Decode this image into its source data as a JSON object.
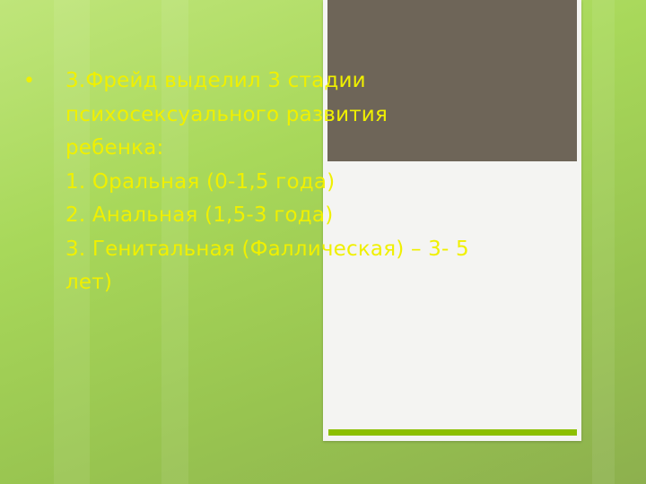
{
  "slide": {
    "bullet": "•",
    "lines": [
      "3.Фрейд выделил 3 стадии",
      "психосексуального развития",
      "ребенка:",
      "1. Оральная (0-1,5 года)",
      "2. Анальная (1,5-3 года)",
      "3. Генитальная (Фаллическая) – 3- 5",
      "лет)"
    ]
  },
  "colors": {
    "text": "#f0f000",
    "panel": "#f4f4f2",
    "dark_block": "#6e6558",
    "accent_bar": "#8cbf00"
  }
}
